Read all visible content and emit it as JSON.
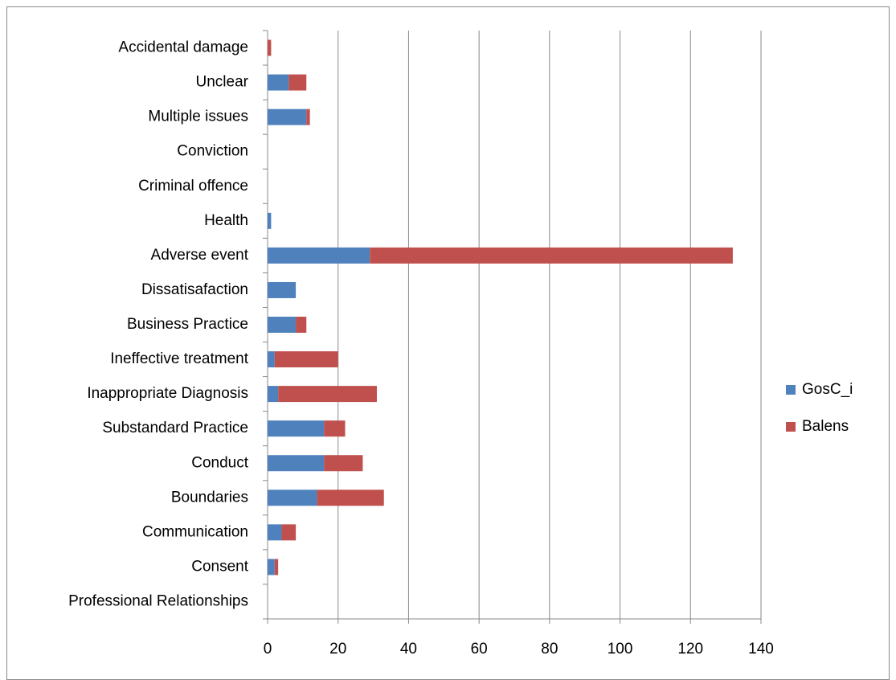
{
  "chart_data": {
    "type": "stacked-bar-horizontal",
    "categories": [
      "Accidental damage",
      "Unclear",
      "Multiple issues",
      "Conviction",
      "Criminal offence",
      "Health",
      "Adverse event",
      "Dissatisafaction",
      "Business Practice",
      "Ineffective treatment",
      "Inappropriate Diagnosis",
      "Substandard Practice",
      "Conduct",
      "Boundaries",
      "Communication",
      "Consent",
      "Professional Relationships"
    ],
    "series": [
      {
        "name": "GosC_i",
        "color": "#4f81bd",
        "values": [
          0,
          6,
          11,
          0,
          0,
          1,
          29,
          8,
          8,
          2,
          3,
          16,
          16,
          14,
          4,
          2,
          0
        ]
      },
      {
        "name": "Balens",
        "color": "#c0504d",
        "values": [
          1,
          5,
          1,
          0,
          0,
          0,
          103,
          0,
          3,
          18,
          28,
          6,
          11,
          19,
          4,
          1,
          0
        ]
      }
    ],
    "xlim": [
      0,
      140
    ],
    "xticks": [
      0,
      20,
      40,
      60,
      80,
      100,
      120,
      140
    ],
    "grid": true,
    "legend": "right"
  }
}
